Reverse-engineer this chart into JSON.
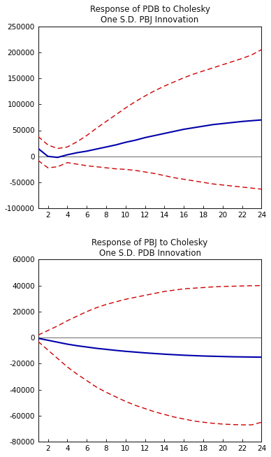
{
  "plot1": {
    "title_line1": "Response of PDB to Cholesky",
    "title_line2": "One S.D. PBJ Innovation",
    "xlim": [
      1,
      24
    ],
    "ylim": [
      -100000,
      250000
    ],
    "yticks": [
      -100000,
      -50000,
      0,
      50000,
      100000,
      150000,
      200000,
      250000
    ],
    "xticks": [
      2,
      4,
      6,
      8,
      10,
      12,
      14,
      16,
      18,
      20,
      22,
      24
    ],
    "blue_x": [
      1,
      2,
      3,
      4,
      5,
      6,
      7,
      8,
      9,
      10,
      11,
      12,
      13,
      14,
      15,
      16,
      17,
      18,
      19,
      20,
      21,
      22,
      23,
      24
    ],
    "blue_y": [
      15000,
      0,
      -2000,
      3000,
      7000,
      10000,
      14000,
      18000,
      22000,
      27000,
      31000,
      36000,
      40000,
      44000,
      48000,
      52000,
      55000,
      58000,
      61000,
      63000,
      65000,
      67000,
      68500,
      70000
    ],
    "upper_x": [
      1,
      2,
      3,
      4,
      5,
      6,
      7,
      8,
      9,
      10,
      11,
      12,
      13,
      14,
      15,
      16,
      17,
      18,
      19,
      20,
      21,
      22,
      23,
      24
    ],
    "upper_y": [
      38000,
      22000,
      15000,
      18000,
      28000,
      40000,
      54000,
      67000,
      80000,
      93000,
      105000,
      116000,
      126000,
      135000,
      143000,
      151000,
      158000,
      164000,
      170000,
      176000,
      182000,
      188000,
      195000,
      205000
    ],
    "lower_x": [
      1,
      2,
      3,
      4,
      5,
      6,
      7,
      8,
      9,
      10,
      11,
      12,
      13,
      14,
      15,
      16,
      17,
      18,
      19,
      20,
      21,
      22,
      23,
      24
    ],
    "lower_y": [
      -8000,
      -22000,
      -20000,
      -12000,
      -15000,
      -18000,
      -20000,
      -22000,
      -24000,
      -25000,
      -27000,
      -30000,
      -33000,
      -37000,
      -41000,
      -44000,
      -47000,
      -50000,
      -53000,
      -55000,
      -57000,
      -59000,
      -61000,
      -63000
    ],
    "blue_color": "#0000aa",
    "red_color": "#cc0000",
    "line_color": "#666666"
  },
  "plot2": {
    "title_line1": "Response of PBJ to Cholesky",
    "title_line2": "One S.D. PDB Innovation",
    "xlim": [
      1,
      24
    ],
    "ylim": [
      -80000,
      60000
    ],
    "yticks": [
      -80000,
      -60000,
      -40000,
      -20000,
      0,
      20000,
      40000,
      60000
    ],
    "xticks": [
      2,
      4,
      6,
      8,
      10,
      12,
      14,
      16,
      18,
      20,
      22,
      24
    ],
    "blue_x": [
      1,
      2,
      3,
      4,
      5,
      6,
      7,
      8,
      9,
      10,
      11,
      12,
      13,
      14,
      15,
      16,
      17,
      18,
      19,
      20,
      21,
      22,
      23,
      24
    ],
    "blue_y": [
      -500,
      -2000,
      -3500,
      -5000,
      -6200,
      -7200,
      -8200,
      -9000,
      -9800,
      -10500,
      -11100,
      -11700,
      -12200,
      -12700,
      -13100,
      -13500,
      -13800,
      -14100,
      -14300,
      -14500,
      -14700,
      -14800,
      -14900,
      -15000
    ],
    "upper_x": [
      1,
      2,
      3,
      4,
      5,
      6,
      7,
      8,
      9,
      10,
      11,
      12,
      13,
      14,
      15,
      16,
      17,
      18,
      19,
      20,
      21,
      22,
      23,
      24
    ],
    "upper_y": [
      2000,
      5500,
      9000,
      13000,
      16500,
      20000,
      23000,
      25500,
      27500,
      29500,
      31000,
      32500,
      34000,
      35500,
      36500,
      37500,
      38000,
      38500,
      39000,
      39300,
      39500,
      39700,
      39900,
      40000
    ],
    "lower_x": [
      1,
      2,
      3,
      4,
      5,
      6,
      7,
      8,
      9,
      10,
      11,
      12,
      13,
      14,
      15,
      16,
      17,
      18,
      19,
      20,
      21,
      22,
      23,
      24
    ],
    "lower_y": [
      -3000,
      -9500,
      -16000,
      -22500,
      -28000,
      -33000,
      -38000,
      -42000,
      -45500,
      -49000,
      -52000,
      -54500,
      -57000,
      -59000,
      -61000,
      -62500,
      -64000,
      -65000,
      -65800,
      -66400,
      -66800,
      -67000,
      -67000,
      -65000
    ],
    "blue_color": "#0000aa",
    "red_color": "#cc0000",
    "line_color": "#666666"
  },
  "bg_color": "#ffffff",
  "plot_bg": "#ffffff",
  "title_fontsize": 8.5,
  "tick_fontsize": 7.5
}
